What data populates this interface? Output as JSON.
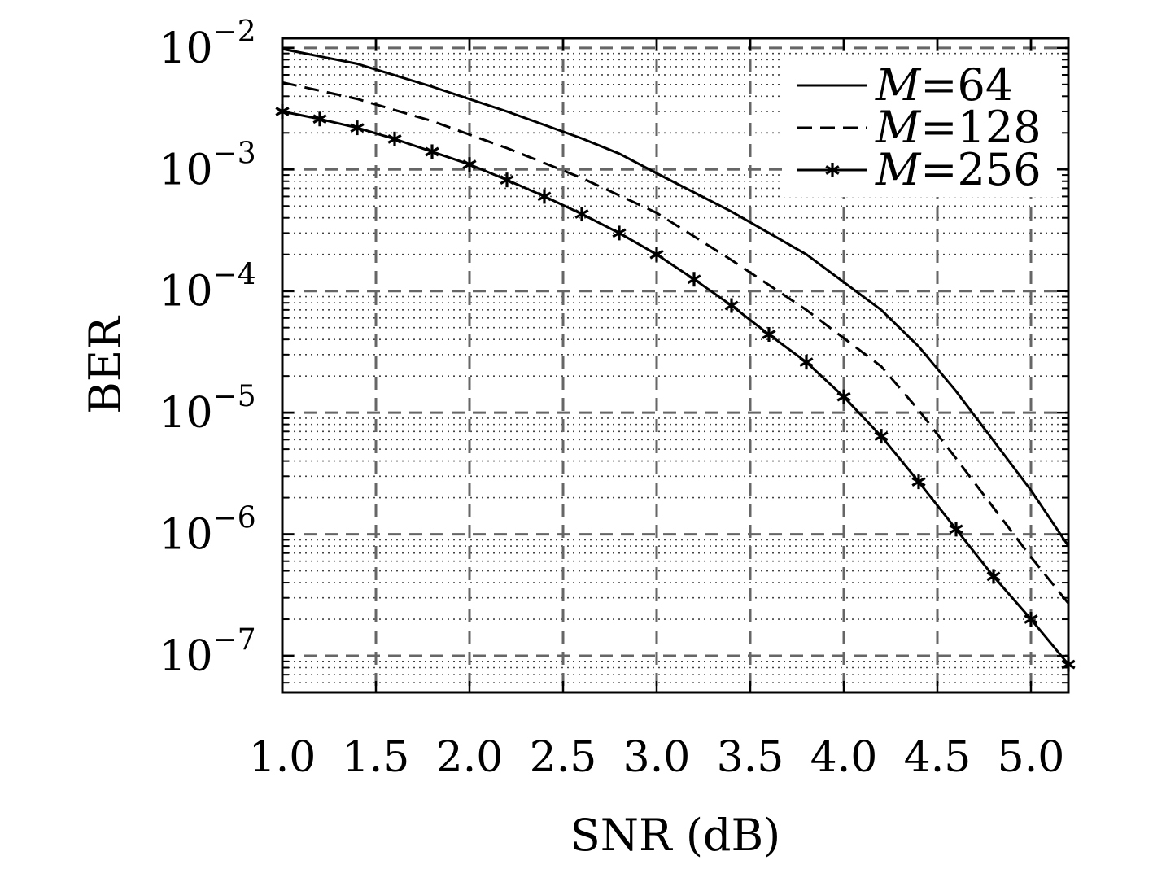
{
  "chart_data": {
    "type": "line",
    "title": "",
    "xlabel": "SNR (dB)",
    "ylabel": "BER",
    "xlim": [
      1.0,
      5.2
    ],
    "ylim": [
      5e-08,
      0.012
    ],
    "yscale": "log",
    "grid": true,
    "legend_position": "top-right",
    "x_ticks": [
      {
        "value": 1.0,
        "label": "1.0"
      },
      {
        "value": 1.5,
        "label": "1.5"
      },
      {
        "value": 2.0,
        "label": "2.0"
      },
      {
        "value": 2.5,
        "label": "2.5"
      },
      {
        "value": 3.0,
        "label": "3.0"
      },
      {
        "value": 3.5,
        "label": "3.5"
      },
      {
        "value": 4.0,
        "label": "4.0"
      },
      {
        "value": 4.5,
        "label": "4.5"
      },
      {
        "value": 5.0,
        "label": "5.0"
      }
    ],
    "y_ticks": [
      {
        "value": 0.01,
        "base": "10",
        "exp": "−2"
      },
      {
        "value": 0.001,
        "base": "10",
        "exp": "−3"
      },
      {
        "value": 0.0001,
        "base": "10",
        "exp": "−4"
      },
      {
        "value": 1e-05,
        "base": "10",
        "exp": "−5"
      },
      {
        "value": 1e-06,
        "base": "10",
        "exp": "−6"
      },
      {
        "value": 1e-07,
        "base": "10",
        "exp": "−7"
      }
    ],
    "series": [
      {
        "name": "M=64",
        "legend_var": "M",
        "legend_rest": "=64",
        "style": "solid",
        "marker": "none",
        "x": [
          1.0,
          1.4,
          1.8,
          2.2,
          2.6,
          2.8,
          3.0,
          3.4,
          3.8,
          4.2,
          4.4,
          4.6,
          5.0,
          5.2
        ],
        "values": [
          0.0098,
          0.0074,
          0.0048,
          0.003,
          0.0018,
          0.00135,
          0.00093,
          0.00045,
          0.0002,
          7e-05,
          3.5e-05,
          1.5e-05,
          2.3e-06,
          8e-07
        ]
      },
      {
        "name": "M=128",
        "legend_var": "M",
        "legend_rest": "=128",
        "style": "dashed",
        "marker": "none",
        "x": [
          1.0,
          1.4,
          1.8,
          2.2,
          2.6,
          3.0,
          3.4,
          3.8,
          4.2,
          4.4,
          4.6,
          5.0,
          5.2
        ],
        "values": [
          0.0052,
          0.0038,
          0.0025,
          0.0015,
          0.00085,
          0.00044,
          0.00018,
          7e-05,
          2.4e-05,
          1.05e-05,
          4.2e-06,
          6.5e-07,
          2.7e-07
        ]
      },
      {
        "name": "M=256",
        "legend_var": "M",
        "legend_rest": "=256",
        "style": "solid",
        "marker": "asterisk",
        "x": [
          1.0,
          1.2,
          1.4,
          1.6,
          1.8,
          2.0,
          2.2,
          2.4,
          2.6,
          2.8,
          3.0,
          3.2,
          3.4,
          3.6,
          3.8,
          4.0,
          4.2,
          4.4,
          4.6,
          4.8,
          5.0,
          5.2
        ],
        "values": [
          0.003,
          0.0026,
          0.0022,
          0.00178,
          0.0014,
          0.0011,
          0.00082,
          0.0006,
          0.00043,
          0.0003,
          0.0002,
          0.000125,
          7.6e-05,
          4.4e-05,
          2.6e-05,
          1.35e-05,
          6.4e-06,
          2.7e-06,
          1.1e-06,
          4.5e-07,
          2e-07,
          8.5e-08
        ]
      }
    ]
  }
}
